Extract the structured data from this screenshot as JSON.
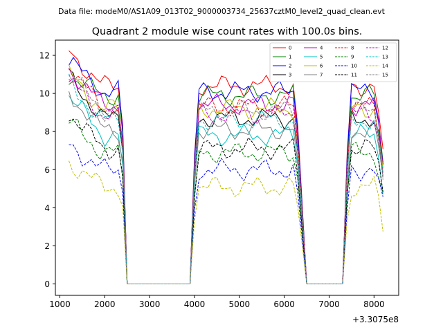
{
  "figure": {
    "suptitle": "Data file: modeM0/AS1A09_013T02_9000003734_25637cztM0_level2_quad_clean.evt",
    "title": "Quadrant 2 module wise count rates with 100.0s bins.",
    "x_offset_label": "+3.3075e8"
  },
  "chart_data": {
    "type": "line",
    "title": "Quadrant 2 module wise count rates with 100.0s bins.",
    "xlabel": "",
    "ylabel": "",
    "x_offset": 330750000,
    "xlim": [
      900,
      8550
    ],
    "ylim": [
      -0.6,
      12.8
    ],
    "x_ticks": [
      1000,
      2000,
      3000,
      4000,
      5000,
      6000,
      7000,
      8000
    ],
    "x_tick_labels": [
      "1000",
      "2000",
      "3000",
      "4000",
      "5000",
      "6000",
      "7000",
      "8000"
    ],
    "y_ticks": [
      0,
      2,
      4,
      6,
      8,
      10,
      12
    ],
    "y_tick_labels": [
      "0",
      "2",
      "4",
      "6",
      "8",
      "10",
      "12"
    ],
    "grid": false,
    "legend_position": "top-right",
    "legend_columns": 4,
    "segments": [
      {
        "x_start": 1200,
        "x_end": 2400,
        "state": "on"
      },
      {
        "x_start": 2500,
        "x_end": 3900,
        "state": "off"
      },
      {
        "x_start": 4000,
        "x_end": 6300,
        "state": "on"
      },
      {
        "x_start": 6500,
        "x_end": 7300,
        "state": "off"
      },
      {
        "x_start": 7400,
        "x_end": 8200,
        "state": "on"
      }
    ],
    "series": [
      {
        "name": "0",
        "color": "#ff0000",
        "dash": "solid",
        "level": 10.4,
        "start": 12.2,
        "end": 6.5
      },
      {
        "name": "1",
        "color": "#008000",
        "dash": "solid",
        "level": 9.9,
        "start": 11.0,
        "end": 6.3
      },
      {
        "name": "2",
        "color": "#0000ff",
        "dash": "solid",
        "level": 10.1,
        "start": 11.7,
        "end": 6.4
      },
      {
        "name": "3",
        "color": "#000000",
        "dash": "solid",
        "level": 8.7,
        "start": 10.9,
        "end": 6.0
      },
      {
        "name": "4",
        "color": "#bf00bf",
        "dash": "solid",
        "level": 9.4,
        "start": 11.3,
        "end": 6.2
      },
      {
        "name": "5",
        "color": "#00bfbf",
        "dash": "solid",
        "level": 7.8,
        "start": 9.9,
        "end": 5.3
      },
      {
        "name": "6",
        "color": "#bfbf00",
        "dash": "solid",
        "level": 9.2,
        "start": 11.0,
        "end": 6.1
      },
      {
        "name": "7",
        "color": "#808080",
        "dash": "solid",
        "level": 8.1,
        "start": 10.0,
        "end": 5.5
      },
      {
        "name": "8",
        "color": "#ff0000",
        "dash": "dashed",
        "level": 9.3,
        "start": 11.2,
        "end": 6.0
      },
      {
        "name": "9",
        "color": "#008000",
        "dash": "dashed",
        "level": 6.9,
        "start": 8.5,
        "end": 4.6
      },
      {
        "name": "10",
        "color": "#0000ff",
        "dash": "dashed",
        "level": 6.0,
        "start": 7.3,
        "end": 4.0
      },
      {
        "name": "11",
        "color": "#000000",
        "dash": "dashed",
        "level": 7.1,
        "start": 9.0,
        "end": 4.9
      },
      {
        "name": "12",
        "color": "#bf00bf",
        "dash": "dashed",
        "level": 8.9,
        "start": 10.6,
        "end": 5.8
      },
      {
        "name": "13",
        "color": "#00bfbf",
        "dash": "dashed",
        "level": 8.6,
        "start": 10.5,
        "end": 5.7
      },
      {
        "name": "14",
        "color": "#bfbf00",
        "dash": "dashed",
        "level": 5.1,
        "start": 6.4,
        "end": 3.0
      },
      {
        "name": "15",
        "color": "#808080",
        "dash": "dashed",
        "level": 9.1,
        "start": 11.0,
        "end": 6.0
      }
    ]
  }
}
